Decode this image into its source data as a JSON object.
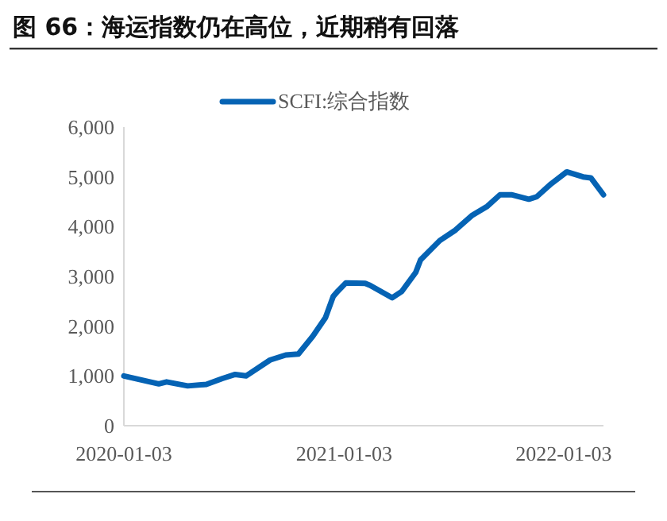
{
  "chart_data": {
    "type": "line",
    "title": "图 66：海运指数仍在高位，近期稍有回落",
    "x": [
      "2020-01-03",
      "2020-03-01",
      "2020-03-14",
      "2020-04-18",
      "2020-05-19",
      "2020-06-15",
      "2020-07-06",
      "2020-07-24",
      "2020-09-02",
      "2020-09-28",
      "2020-10-19",
      "2020-11-12",
      "2020-12-03",
      "2020-12-16",
      "2020-12-24",
      "2021-01-06",
      "2021-02-07",
      "2021-02-15",
      "2021-03-24",
      "2021-04-09",
      "2021-05-02",
      "2021-05-10",
      "2021-06-11",
      "2021-07-07",
      "2021-08-03",
      "2021-08-29",
      "2021-09-19",
      "2021-10-08",
      "2021-11-06",
      "2021-11-19",
      "2021-12-13",
      "2022-01-08",
      "2022-02-04",
      "2022-02-17",
      "2022-03-10"
    ],
    "series": [
      {
        "name": "SCFI:综合指数",
        "color": "#0563b4",
        "values": [
          1000,
          840,
          880,
          800,
          830,
          950,
          1030,
          1000,
          1320,
          1420,
          1440,
          1800,
          2170,
          2600,
          2710,
          2870,
          2860,
          2820,
          2570,
          2700,
          3080,
          3330,
          3720,
          3930,
          4220,
          4410,
          4640,
          4640,
          4550,
          4600,
          4860,
          5100,
          5000,
          4980,
          4640
        ]
      }
    ],
    "xlim": [
      "2020-01-03",
      "2022-03-10"
    ],
    "xticks": [
      {
        "value": "2020-01-03",
        "label": "2020-01-03"
      },
      {
        "value": "2021-01-03",
        "label": "2021-01-03"
      },
      {
        "value": "2022-01-03",
        "label": "2022-01-03"
      }
    ],
    "ylim": [
      0,
      6000
    ],
    "yticks": [
      0,
      {
        "value": 1000,
        "label": "1,000"
      },
      {
        "value": 2000,
        "label": "2,000"
      },
      {
        "value": 3000,
        "label": "3,000"
      },
      {
        "value": 4000,
        "label": "4,000"
      },
      {
        "value": 5000,
        "label": "5,000"
      },
      {
        "value": 6000,
        "label": "6,000"
      }
    ],
    "grid": false,
    "legend": "top",
    "marker": "none",
    "line_style": "solid"
  }
}
